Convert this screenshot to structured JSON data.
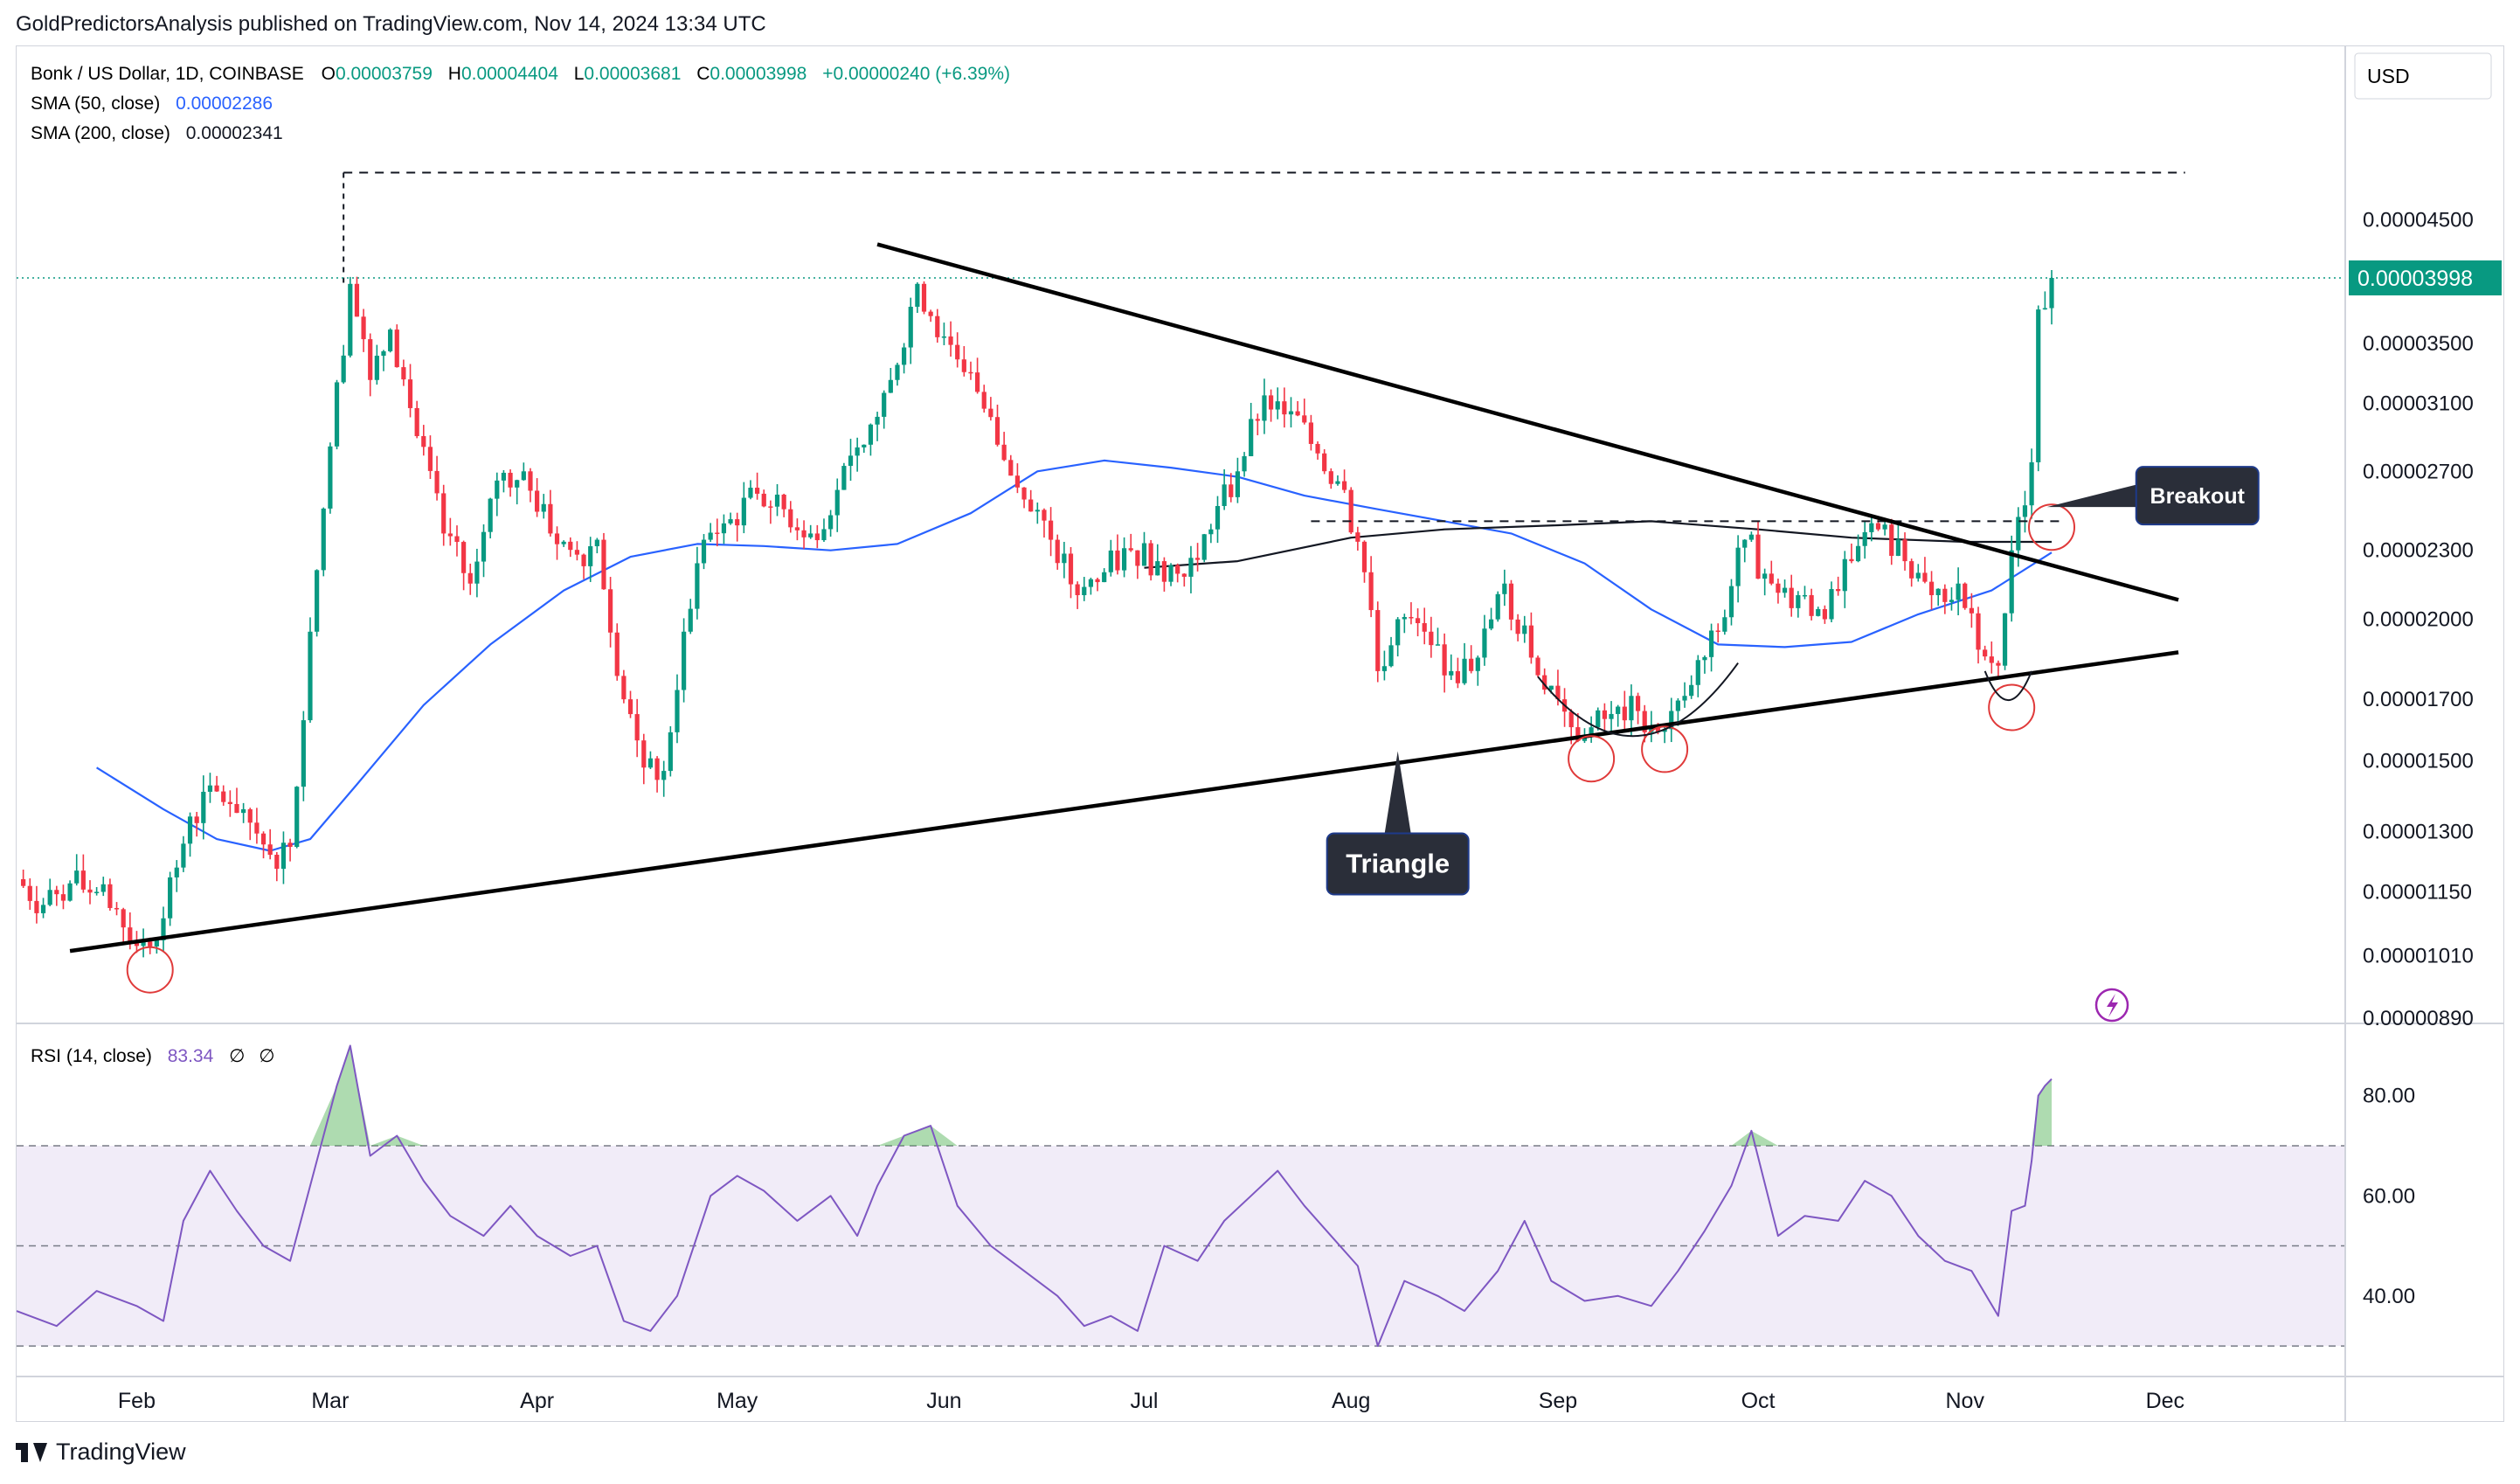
{
  "header": {
    "publisher_line": "GoldPredictorsAnalysis published on TradingView.com, Nov 14, 2024 13:34 UTC"
  },
  "legend": {
    "symbol": "Bonk / US Dollar, 1D, COINBASE",
    "open_label": "O",
    "open": "0.00003759",
    "high_label": "H",
    "high": "0.00004404",
    "low_label": "L",
    "low": "0.00003681",
    "close_label": "C",
    "close": "0.00003998",
    "change": "+0.00000240 (+6.39%)",
    "sma50_label": "SMA (50, close)",
    "sma50_value": "0.00002286",
    "sma200_label": "SMA (200, close)",
    "sma200_value": "0.00002341",
    "rsi_label": "RSI (14, close)",
    "rsi_value": "83.34",
    "rsi_extra1": "∅",
    "rsi_extra2": "∅"
  },
  "currency_button": "USD",
  "footer": {
    "brand": "TradingView"
  },
  "colors": {
    "up": "#089981",
    "down": "#f23645",
    "sma50": "#2962ff",
    "sma200": "#131722",
    "rsi": "#7e57c2",
    "rsi_band": "#ede7f6",
    "price_tag": "#089981",
    "axis_text": "#131722"
  },
  "chart_data": [
    {
      "type": "candlestick",
      "title": "",
      "scale": "log",
      "y_ticks": [
        "0.00004500",
        "0.00003500",
        "0.00003100",
        "0.00002700",
        "0.00002300",
        "0.00002000",
        "0.00001700",
        "0.00001500",
        "0.00001300",
        "0.00001150",
        "0.00001010",
        "0.00000890"
      ],
      "ylim": [
        8.9e-06,
        5.6e-05
      ],
      "x_ticks": [
        "Feb",
        "Mar",
        "Apr",
        "May",
        "Jun",
        "Jul",
        "Aug",
        "Sep",
        "Oct",
        "Nov",
        "Dec"
      ],
      "x_tick_dates": [
        "2024-02-01",
        "2024-03-01",
        "2024-04-01",
        "2024-05-01",
        "2024-06-01",
        "2024-07-01",
        "2024-08-01",
        "2024-09-01",
        "2024-10-01",
        "2024-11-01",
        "2024-12-01"
      ],
      "xlim": [
        "2024-01-14",
        "2024-12-28"
      ],
      "last_price_label": "0.00003998",
      "last_price": 3.998e-05,
      "prev_high_level": 4.95e-05,
      "neckline_level": 2.44e-05,
      "close_series": [
        [
          "2024-01-14",
          1.18e-05
        ],
        [
          "2024-01-18",
          1.12e-05
        ],
        [
          "2024-01-22",
          1.17e-05
        ],
        [
          "2024-01-26",
          1.15e-05
        ],
        [
          "2024-01-30",
          1.07e-05
        ],
        [
          "2024-02-02",
          1.04e-05
        ],
        [
          "2024-02-05",
          1.09e-05
        ],
        [
          "2024-02-09",
          1.34e-05
        ],
        [
          "2024-02-13",
          1.41e-05
        ],
        [
          "2024-02-17",
          1.36e-05
        ],
        [
          "2024-02-21",
          1.24e-05
        ],
        [
          "2024-02-24",
          1.26e-05
        ],
        [
          "2024-02-27",
          1.95e-05
        ],
        [
          "2024-03-01",
          2.84e-05
        ],
        [
          "2024-03-04",
          3.95e-05
        ],
        [
          "2024-03-07",
          3.25e-05
        ],
        [
          "2024-03-10",
          3.6e-05
        ],
        [
          "2024-03-14",
          2.9e-05
        ],
        [
          "2024-03-18",
          2.38e-05
        ],
        [
          "2024-03-22",
          2.15e-05
        ],
        [
          "2024-03-26",
          2.65e-05
        ],
        [
          "2024-03-30",
          2.7e-05
        ],
        [
          "2024-04-03",
          2.38e-05
        ],
        [
          "2024-04-07",
          2.28e-05
        ],
        [
          "2024-04-10",
          2.35e-05
        ],
        [
          "2024-04-14",
          1.7e-05
        ],
        [
          "2024-04-17",
          1.48e-05
        ],
        [
          "2024-04-20",
          1.47e-05
        ],
        [
          "2024-04-23",
          1.95e-05
        ],
        [
          "2024-04-26",
          2.35e-05
        ],
        [
          "2024-04-30",
          2.45e-05
        ],
        [
          "2024-05-04",
          2.58e-05
        ],
        [
          "2024-05-08",
          2.5e-05
        ],
        [
          "2024-05-12",
          2.38e-05
        ],
        [
          "2024-05-16",
          2.6e-05
        ],
        [
          "2024-05-20",
          2.85e-05
        ],
        [
          "2024-05-24",
          3.25e-05
        ],
        [
          "2024-05-28",
          3.95e-05
        ],
        [
          "2024-06-01",
          3.55e-05
        ],
        [
          "2024-06-05",
          3.3e-05
        ],
        [
          "2024-06-09",
          2.85e-05
        ],
        [
          "2024-06-13",
          2.55e-05
        ],
        [
          "2024-06-17",
          2.35e-05
        ],
        [
          "2024-06-21",
          2.1e-05
        ],
        [
          "2024-06-25",
          2.2e-05
        ],
        [
          "2024-06-29",
          2.3e-05
        ],
        [
          "2024-07-03",
          2.25e-05
        ],
        [
          "2024-07-07",
          2.18e-05
        ],
        [
          "2024-07-11",
          2.4e-05
        ],
        [
          "2024-07-15",
          2.7e-05
        ],
        [
          "2024-07-19",
          3.15e-05
        ],
        [
          "2024-07-23",
          3.05e-05
        ],
        [
          "2024-07-27",
          2.8e-05
        ],
        [
          "2024-07-31",
          2.6e-05
        ],
        [
          "2024-08-03",
          2.2e-05
        ],
        [
          "2024-08-05",
          1.8e-05
        ],
        [
          "2024-08-08",
          2e-05
        ],
        [
          "2024-08-12",
          1.95e-05
        ],
        [
          "2024-08-16",
          1.8e-05
        ],
        [
          "2024-08-20",
          1.85e-05
        ],
        [
          "2024-08-24",
          2.15e-05
        ],
        [
          "2024-08-28",
          1.85e-05
        ],
        [
          "2024-09-01",
          1.7e-05
        ],
        [
          "2024-09-05",
          1.58e-05
        ],
        [
          "2024-09-09",
          1.65e-05
        ],
        [
          "2024-09-13",
          1.66e-05
        ],
        [
          "2024-09-17",
          1.6e-05
        ],
        [
          "2024-09-21",
          1.75e-05
        ],
        [
          "2024-09-25",
          1.95e-05
        ],
        [
          "2024-09-29",
          2.35e-05
        ],
        [
          "2024-10-03",
          2.15e-05
        ],
        [
          "2024-10-07",
          2.1e-05
        ],
        [
          "2024-10-11",
          2e-05
        ],
        [
          "2024-10-15",
          2.25e-05
        ],
        [
          "2024-10-19",
          2.4e-05
        ],
        [
          "2024-10-23",
          2.25e-05
        ],
        [
          "2024-10-27",
          2.1e-05
        ],
        [
          "2024-10-31",
          2.15e-05
        ],
        [
          "2024-11-03",
          1.88e-05
        ],
        [
          "2024-11-06",
          1.82e-05
        ],
        [
          "2024-11-08",
          2.3e-05
        ],
        [
          "2024-11-10",
          2.52e-05
        ],
        [
          "2024-11-11",
          2.75e-05
        ],
        [
          "2024-11-12",
          3.75e-05
        ],
        [
          "2024-11-13",
          3.76e-05
        ],
        [
          "2024-11-14",
          3.998e-05
        ]
      ],
      "sma50_series": [
        [
          "2024-01-26",
          1.48e-05
        ],
        [
          "2024-02-05",
          1.36e-05
        ],
        [
          "2024-02-13",
          1.28e-05
        ],
        [
          "2024-02-21",
          1.25e-05
        ],
        [
          "2024-02-27",
          1.28e-05
        ],
        [
          "2024-03-05",
          1.43e-05
        ],
        [
          "2024-03-15",
          1.68e-05
        ],
        [
          "2024-03-25",
          1.9e-05
        ],
        [
          "2024-04-05",
          2.12e-05
        ],
        [
          "2024-04-15",
          2.27e-05
        ],
        [
          "2024-04-25",
          2.33e-05
        ],
        [
          "2024-05-05",
          2.32e-05
        ],
        [
          "2024-05-15",
          2.3e-05
        ],
        [
          "2024-05-25",
          2.33e-05
        ],
        [
          "2024-06-05",
          2.48e-05
        ],
        [
          "2024-06-15",
          2.7e-05
        ],
        [
          "2024-06-25",
          2.76e-05
        ],
        [
          "2024-07-05",
          2.72e-05
        ],
        [
          "2024-07-15",
          2.67e-05
        ],
        [
          "2024-07-25",
          2.57e-05
        ],
        [
          "2024-08-05",
          2.5e-05
        ],
        [
          "2024-08-15",
          2.44e-05
        ],
        [
          "2024-08-25",
          2.38e-05
        ],
        [
          "2024-09-05",
          2.24e-05
        ],
        [
          "2024-09-15",
          2.04e-05
        ],
        [
          "2024-09-25",
          1.9e-05
        ],
        [
          "2024-10-05",
          1.89e-05
        ],
        [
          "2024-10-15",
          1.91e-05
        ],
        [
          "2024-10-25",
          2.02e-05
        ],
        [
          "2024-11-05",
          2.12e-05
        ],
        [
          "2024-11-14",
          2.29e-05
        ]
      ],
      "sma200_series": [
        [
          "2024-07-01",
          2.22e-05
        ],
        [
          "2024-07-15",
          2.25e-05
        ],
        [
          "2024-08-01",
          2.36e-05
        ],
        [
          "2024-08-15",
          2.4e-05
        ],
        [
          "2024-09-01",
          2.42e-05
        ],
        [
          "2024-09-15",
          2.44e-05
        ],
        [
          "2024-10-01",
          2.4e-05
        ],
        [
          "2024-10-15",
          2.36e-05
        ],
        [
          "2024-11-01",
          2.34e-05
        ],
        [
          "2024-11-14",
          2.34e-05
        ]
      ],
      "annotations": [
        {
          "text": "Triangle",
          "target_date": "2024-08-08",
          "target_price": 1.53e-05
        },
        {
          "text": "Breakout",
          "target_date": "2024-11-12",
          "target_price": 2.45e-05
        }
      ],
      "triangle_resistance": [
        [
          "2024-05-22",
          4.28e-05
        ],
        [
          "2024-12-03",
          2.08e-05
        ]
      ],
      "triangle_support": [
        [
          "2024-01-22",
          1.02e-05
        ],
        [
          "2024-12-03",
          1.87e-05
        ]
      ],
      "marked_lows": [
        [
          "2024-02-03",
          1.01e-05
        ],
        [
          "2024-09-06",
          1.55e-05
        ],
        [
          "2024-09-17",
          1.58e-05
        ],
        [
          "2024-11-08",
          1.72e-05
        ],
        [
          "2024-11-14",
          2.48e-05
        ]
      ]
    },
    {
      "type": "line",
      "title": "",
      "y_ticks": [
        "80.00",
        "60.00",
        "40.00"
      ],
      "ylim": [
        26,
        92
      ],
      "overbought": 70,
      "midline": 50,
      "oversold": 30,
      "series": [
        {
          "points": [
            [
              "2024-01-14",
              37
            ],
            [
              "2024-01-20",
              34
            ],
            [
              "2024-01-26",
              41
            ],
            [
              "2024-02-01",
              38
            ],
            [
              "2024-02-05",
              35
            ],
            [
              "2024-02-08",
              55
            ],
            [
              "2024-02-12",
              65
            ],
            [
              "2024-02-16",
              57
            ],
            [
              "2024-02-20",
              50
            ],
            [
              "2024-02-24",
              47
            ],
            [
              "2024-02-27",
              62
            ],
            [
              "2024-03-02",
              82
            ],
            [
              "2024-03-04",
              90
            ],
            [
              "2024-03-07",
              68
            ],
            [
              "2024-03-11",
              72
            ],
            [
              "2024-03-15",
              63
            ],
            [
              "2024-03-19",
              56
            ],
            [
              "2024-03-24",
              52
            ],
            [
              "2024-03-28",
              58
            ],
            [
              "2024-04-01",
              52
            ],
            [
              "2024-04-06",
              48
            ],
            [
              "2024-04-10",
              50
            ],
            [
              "2024-04-14",
              35
            ],
            [
              "2024-04-18",
              33
            ],
            [
              "2024-04-22",
              40
            ],
            [
              "2024-04-27",
              60
            ],
            [
              "2024-05-01",
              64
            ],
            [
              "2024-05-05",
              61
            ],
            [
              "2024-05-10",
              55
            ],
            [
              "2024-05-15",
              60
            ],
            [
              "2024-05-19",
              52
            ],
            [
              "2024-05-22",
              62
            ],
            [
              "2024-05-26",
              72
            ],
            [
              "2024-05-30",
              74
            ],
            [
              "2024-06-03",
              58
            ],
            [
              "2024-06-08",
              50
            ],
            [
              "2024-06-13",
              45
            ],
            [
              "2024-06-18",
              40
            ],
            [
              "2024-06-22",
              34
            ],
            [
              "2024-06-26",
              36
            ],
            [
              "2024-06-30",
              33
            ],
            [
              "2024-07-04",
              50
            ],
            [
              "2024-07-09",
              47
            ],
            [
              "2024-07-13",
              55
            ],
            [
              "2024-07-17",
              60
            ],
            [
              "2024-07-21",
              65
            ],
            [
              "2024-07-25",
              58
            ],
            [
              "2024-07-29",
              52
            ],
            [
              "2024-08-02",
              46
            ],
            [
              "2024-08-05",
              30
            ],
            [
              "2024-08-09",
              43
            ],
            [
              "2024-08-14",
              40
            ],
            [
              "2024-08-18",
              37
            ],
            [
              "2024-08-23",
              45
            ],
            [
              "2024-08-27",
              55
            ],
            [
              "2024-08-31",
              43
            ],
            [
              "2024-09-05",
              39
            ],
            [
              "2024-09-10",
              40
            ],
            [
              "2024-09-15",
              38
            ],
            [
              "2024-09-19",
              45
            ],
            [
              "2024-09-23",
              53
            ],
            [
              "2024-09-27",
              62
            ],
            [
              "2024-09-30",
              73
            ],
            [
              "2024-10-04",
              52
            ],
            [
              "2024-10-08",
              56
            ],
            [
              "2024-10-13",
              55
            ],
            [
              "2024-10-17",
              63
            ],
            [
              "2024-10-21",
              60
            ],
            [
              "2024-10-25",
              52
            ],
            [
              "2024-10-29",
              47
            ],
            [
              "2024-11-02",
              45
            ],
            [
              "2024-11-06",
              36
            ],
            [
              "2024-11-08",
              57
            ],
            [
              "2024-11-10",
              58
            ],
            [
              "2024-11-11",
              67
            ],
            [
              "2024-11-12",
              80
            ],
            [
              "2024-11-13",
              82
            ],
            [
              "2024-11-14",
              83.34
            ]
          ]
        }
      ]
    }
  ]
}
